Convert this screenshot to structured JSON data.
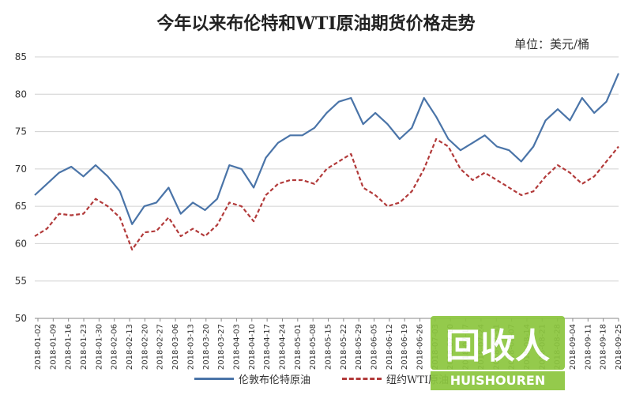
{
  "chart_data": {
    "type": "line",
    "title": "今年以来布伦特和WTI原油期货价格走势",
    "unit_label": "单位：美元/桶",
    "ylim": [
      50,
      85
    ],
    "yticks": [
      50,
      55,
      60,
      65,
      70,
      75,
      80,
      85
    ],
    "grid": true,
    "legend_position": "bottom",
    "x_tick_labels": [
      "2018-01-02",
      "2018-01-09",
      "2018-01-16",
      "2018-01-23",
      "2018-01-30",
      "2018-02-06",
      "2018-02-13",
      "2018-02-20",
      "2018-02-27",
      "2018-03-06",
      "2018-03-13",
      "2018-03-20",
      "2018-03-27",
      "2018-04-03",
      "2018-04-10",
      "2018-04-17",
      "2018-04-24",
      "2018-05-01",
      "2018-05-08",
      "2018-05-15",
      "2018-05-22",
      "2018-05-29",
      "2018-06-05",
      "2018-06-12",
      "2018-06-19",
      "2018-06-26",
      "2018-07-03",
      "2018-07-10",
      "2018-07-17",
      "2018-07-24",
      "2018-07-31",
      "2018-08-07",
      "2018-08-14",
      "2018-08-21",
      "2018-08-28",
      "2018-09-04",
      "2018-09-11",
      "2018-09-18",
      "2018-09-25"
    ],
    "series": [
      {
        "name": "伦敦布伦特原油",
        "color": "#4a74a8",
        "style": "solid",
        "values": [
          66.5,
          68.0,
          69.5,
          70.3,
          69.0,
          70.5,
          69.0,
          67.0,
          62.6,
          65.0,
          65.5,
          67.5,
          64.0,
          65.5,
          64.5,
          66.0,
          70.5,
          70.0,
          67.5,
          71.5,
          73.5,
          74.5,
          74.5,
          75.5,
          77.5,
          79.0,
          79.5,
          76.0,
          77.5,
          76.0,
          74.0,
          75.5,
          79.5,
          77.0,
          74.0,
          72.5,
          73.5,
          74.5,
          73.0,
          72.5,
          71.0,
          73.0,
          76.5,
          78.0,
          76.5,
          79.5,
          77.5,
          79.0,
          82.8
        ]
      },
      {
        "name": "纽约WTI原油",
        "color": "#b23a3a",
        "style": "dashed",
        "values": [
          61.0,
          62.0,
          64.0,
          63.8,
          64.0,
          66.0,
          65.0,
          63.5,
          59.2,
          61.5,
          61.7,
          63.5,
          61.0,
          62.0,
          61.0,
          62.5,
          65.5,
          65.0,
          63.0,
          66.5,
          68.0,
          68.5,
          68.5,
          68.0,
          70.0,
          71.0,
          72.0,
          67.5,
          66.5,
          65.0,
          65.5,
          67.0,
          70.0,
          74.0,
          73.0,
          70.0,
          68.5,
          69.5,
          68.5,
          67.5,
          66.5,
          67.0,
          69.0,
          70.5,
          69.5,
          68.0,
          69.0,
          71.0,
          73.0
        ]
      }
    ]
  },
  "watermark": {
    "logo_text": "回收人",
    "brand_text": "HUISHOUREN"
  }
}
